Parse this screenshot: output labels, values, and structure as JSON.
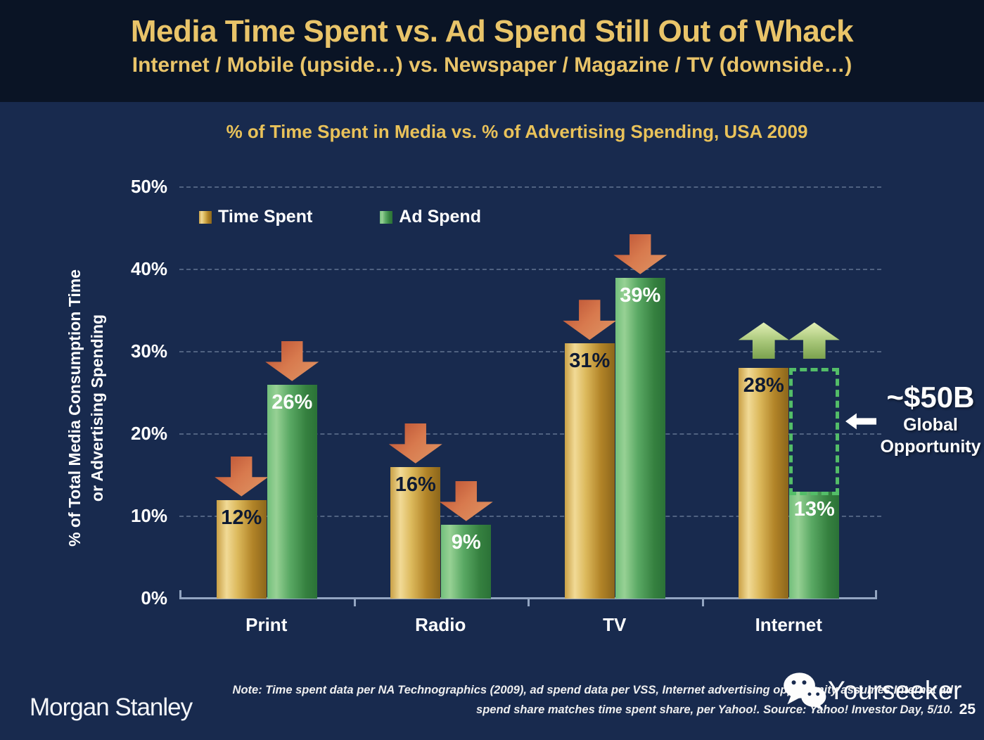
{
  "header": {
    "title": "Media Time Spent vs. Ad Spend Still Out of Whack",
    "subtitle": "Internet / Mobile (upside…) vs. Newspaper / Magazine / TV (downside…)"
  },
  "chart_data": {
    "type": "bar",
    "title": "% of Time Spent in Media vs. % of Advertising Spending, USA 2009",
    "ylabel_line1": "% of Total Media Consumption Time",
    "ylabel_line2": "or Advertising Spending",
    "categories": [
      "Print",
      "Radio",
      "TV",
      "Internet"
    ],
    "series": [
      {
        "name": "Time Spent",
        "values": [
          12,
          16,
          31,
          28
        ],
        "labels": [
          "12%",
          "16%",
          "31%",
          "28%"
        ],
        "trend": [
          "down",
          "down",
          "down",
          "up"
        ],
        "label_color": "#0e1a33",
        "gradient": [
          "#c9a045 0%",
          "#f1da96 20%",
          "#dcb95c 42%",
          "#b28428 72%",
          "#8b661b 100%"
        ],
        "legend_color": "#d9af4e"
      },
      {
        "name": "Ad Spend",
        "values": [
          26,
          9,
          39,
          13
        ],
        "labels": [
          "26%",
          "9%",
          "39%",
          "13%"
        ],
        "trend": [
          "down",
          "down",
          "down",
          "up"
        ],
        "label_color": "#ffffff",
        "gradient": [
          "#72bf7c 0%",
          "#97d194 18%",
          "#5aa964 45%",
          "#35803f 78%",
          "#2b7237 100%"
        ],
        "legend_color": "#4fa45f"
      }
    ],
    "ylim": [
      0,
      50
    ],
    "yticks": [
      0,
      10,
      20,
      30,
      40,
      50
    ],
    "ytick_labels": [
      "0%",
      "10%",
      "20%",
      "30%",
      "40%",
      "50%"
    ],
    "grid": "horizontal dashed",
    "legend_position": "top-left inside plot",
    "arrow_colors": {
      "down_gradient": [
        "#b84c30",
        "#d87a4e",
        "#df9766"
      ],
      "up_gradient": [
        "#e3f0b6",
        "#abc97c",
        "#7ba24e"
      ]
    },
    "opportunity_box": {
      "category": "Internet",
      "series": "Ad Spend",
      "from_value": 13,
      "to_value": 28,
      "border_color": "#53bd68"
    },
    "annotation": {
      "value": "~$50B",
      "line2": "Global",
      "line3": "Opportunity",
      "arrow": "left"
    }
  },
  "colors": {
    "header_background": "#0a1425",
    "body_background": "#182a4e",
    "title_gold": "#e9c469",
    "chart_title_gold": "#e9c25a",
    "axis_line": "#93a5c1",
    "text_white": "#ffffff"
  },
  "footer": {
    "logo": "Morgan Stanley",
    "note_line1": "Note: Time spent data per NA Technographics (2009), ad spend data per VSS, Internet advertising opportunity assumes Internet ad",
    "note_line2": "spend share matches time spent share, per Yahoo!. Source: Yahoo! Investor Day, 5/10.",
    "page_number": "25"
  },
  "watermark": {
    "text": "Yourseeker",
    "icon": "wechat-icon"
  }
}
